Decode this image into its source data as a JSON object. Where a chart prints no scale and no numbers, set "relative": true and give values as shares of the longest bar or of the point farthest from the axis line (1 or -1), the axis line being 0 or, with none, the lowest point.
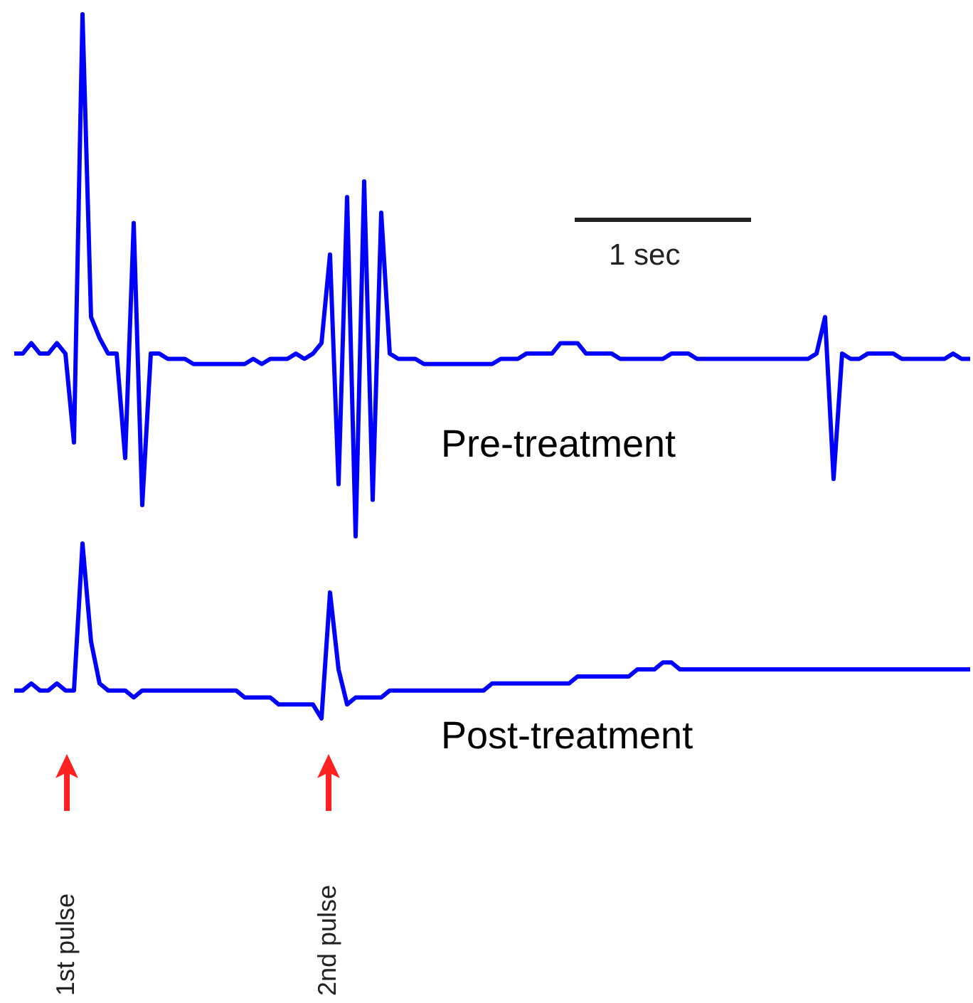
{
  "chart_data": [
    {
      "type": "line",
      "relative": true,
      "tick_labels": false,
      "categories": [
        null,
        null,
        null,
        null,
        null,
        null,
        null,
        null,
        null,
        null,
        null,
        null,
        null,
        null,
        null,
        null,
        null,
        null,
        null,
        null,
        null,
        null,
        null,
        null,
        null,
        null,
        null,
        null,
        null,
        null,
        null,
        null,
        null,
        null,
        null,
        null,
        null,
        null,
        null,
        null,
        null,
        null,
        null,
        null,
        null,
        null,
        null,
        null,
        null,
        null,
        null,
        null,
        null,
        null,
        null,
        null,
        null,
        null,
        null,
        null,
        null,
        null,
        null,
        null,
        null,
        null,
        null,
        null,
        null,
        null,
        null,
        null,
        null,
        null,
        null,
        null,
        null,
        null,
        null,
        null,
        null,
        null,
        null,
        null,
        null,
        null,
        null,
        null,
        null,
        null,
        null,
        null,
        null,
        null,
        null,
        null,
        null,
        null,
        null,
        null,
        null,
        null,
        null,
        null,
        null,
        null,
        null,
        null,
        null,
        null,
        null,
        null,
        null
      ],
      "series": [
        {
          "name": "Pre-treatment",
          "color": "#0000ff",
          "values": [
            0.35,
            0.35,
            0.37,
            0.35,
            0.35,
            0.37,
            0.35,
            0.18,
            1,
            0.42,
            0.38,
            0.35,
            0.35,
            0.15,
            0.6,
            0.06,
            0.35,
            0.35,
            0.34,
            0.34,
            0.34,
            0.33,
            0.33,
            0.33,
            0.33,
            0.33,
            0.33,
            0.33,
            0.34,
            0.33,
            0.34,
            0.34,
            0.34,
            0.35,
            0.34,
            0.35,
            0.37,
            0.54,
            0.1,
            0.65,
            0,
            0.68,
            0.07,
            0.62,
            0.35,
            0.34,
            0.34,
            0.34,
            0.33,
            0.33,
            0.33,
            0.33,
            0.33,
            0.33,
            0.33,
            0.33,
            0.33,
            0.34,
            0.34,
            0.34,
            0.35,
            0.35,
            0.35,
            0.35,
            0.37,
            0.37,
            0.37,
            0.35,
            0.35,
            0.35,
            0.35,
            0.34,
            0.34,
            0.34,
            0.34,
            0.34,
            0.34,
            0.35,
            0.35,
            0.35,
            0.34,
            0.34,
            0.34,
            0.34,
            0.34,
            0.34,
            0.34,
            0.34,
            0.34,
            0.34,
            0.34,
            0.34,
            0.34,
            0.34,
            0.35,
            0.42,
            0.11,
            0.35,
            0.34,
            0.34,
            0.35,
            0.35,
            0.35,
            0.35,
            0.34,
            0.34,
            0.34,
            0.34,
            0.34,
            0.34,
            0.35,
            0.34,
            0.34
          ]
        }
      ],
      "annotations": [
        "1 sec"
      ]
    },
    {
      "type": "line",
      "relative": true,
      "tick_labels": false,
      "categories": [
        null,
        null,
        null,
        null,
        null,
        null,
        null,
        null,
        null,
        null,
        null,
        null,
        null,
        null,
        null,
        null,
        null,
        null,
        null,
        null,
        null,
        null,
        null,
        null,
        null,
        null,
        null,
        null,
        null,
        null,
        null,
        null,
        null,
        null,
        null,
        null,
        null,
        null,
        null,
        null,
        null,
        null,
        null,
        null,
        null,
        null,
        null,
        null,
        null,
        null,
        null,
        null,
        null,
        null,
        null,
        null,
        null,
        null,
        null,
        null,
        null,
        null,
        null,
        null,
        null,
        null,
        null,
        null,
        null,
        null,
        null,
        null,
        null,
        null,
        null,
        null,
        null,
        null,
        null,
        null,
        null,
        null,
        null,
        null,
        null,
        null,
        null,
        null,
        null,
        null,
        null,
        null,
        null,
        null,
        null,
        null,
        null,
        null,
        null,
        null,
        null,
        null,
        null,
        null,
        null,
        null,
        null,
        null,
        null,
        null,
        null,
        null,
        null
      ],
      "series": [
        {
          "name": "Post-treatment",
          "color": "#0000ff",
          "values": [
            0.16,
            0.16,
            0.2,
            0.16,
            0.16,
            0.2,
            0.16,
            0.16,
            1,
            0.44,
            0.2,
            0.16,
            0.16,
            0.16,
            0.12,
            0.16,
            0.16,
            0.16,
            0.16,
            0.16,
            0.16,
            0.16,
            0.16,
            0.16,
            0.16,
            0.16,
            0.16,
            0.12,
            0.12,
            0.12,
            0.12,
            0.08,
            0.08,
            0.08,
            0.08,
            0.08,
            0,
            0.72,
            0.28,
            0.08,
            0.12,
            0.12,
            0.12,
            0.12,
            0.16,
            0.16,
            0.16,
            0.16,
            0.16,
            0.16,
            0.16,
            0.16,
            0.16,
            0.16,
            0.16,
            0.16,
            0.2,
            0.2,
            0.2,
            0.2,
            0.2,
            0.2,
            0.2,
            0.2,
            0.2,
            0.2,
            0.24,
            0.24,
            0.24,
            0.24,
            0.24,
            0.24,
            0.24,
            0.28,
            0.28,
            0.28,
            0.32,
            0.32,
            0.28,
            0.28,
            0.28,
            0.28,
            0.28,
            0.28,
            0.28,
            0.28,
            0.28,
            0.28,
            0.28,
            0.28,
            0.28,
            0.28,
            0.28,
            0.28,
            0.28,
            0.28,
            0.28,
            0.28,
            0.28,
            0.28,
            0.28,
            0.28,
            0.28,
            0.28,
            0.28,
            0.28,
            0.28,
            0.28,
            0.28,
            0.28,
            0.28,
            0.28,
            0.28
          ]
        }
      ],
      "annotations": [
        "1st pulse",
        "2nd pulse"
      ]
    }
  ]
}
